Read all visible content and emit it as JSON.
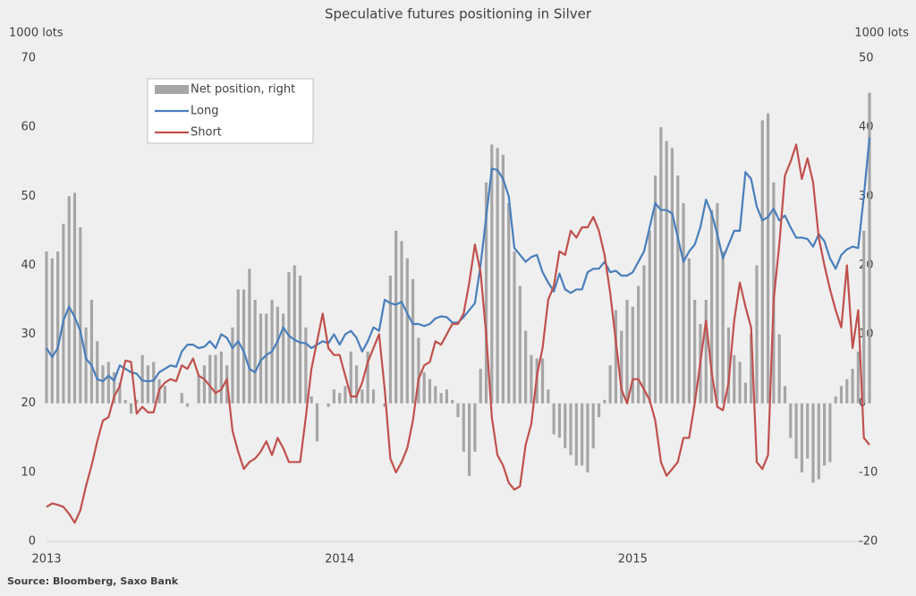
{
  "chart_data": {
    "type": "combo",
    "title": "Speculative futures positioning in Silver",
    "y_label": "1000 lots",
    "y2_label": "1000 lots",
    "source": "Source: Bloomberg, Saxo Bank",
    "legend": "upper left",
    "categories": [
      "2013",
      null,
      null,
      null,
      null,
      null,
      null,
      null,
      null,
      null,
      null,
      null,
      null,
      null,
      null,
      null,
      null,
      null,
      null,
      null,
      null,
      null,
      null,
      null,
      null,
      null,
      null,
      null,
      null,
      null,
      null,
      null,
      null,
      null,
      null,
      null,
      null,
      null,
      null,
      null,
      null,
      null,
      null,
      null,
      null,
      null,
      null,
      null,
      null,
      null,
      null,
      null,
      "2014",
      null,
      null,
      null,
      null,
      null,
      null,
      null,
      null,
      null,
      null,
      null,
      null,
      null,
      null,
      null,
      null,
      null,
      null,
      null,
      null,
      null,
      null,
      null,
      null,
      null,
      null,
      null,
      null,
      null,
      null,
      null,
      null,
      null,
      null,
      null,
      null,
      null,
      null,
      null,
      null,
      null,
      null,
      null,
      null,
      null,
      null,
      null,
      null,
      null,
      null,
      null,
      "2015",
      null,
      null,
      null,
      null,
      null,
      null,
      null,
      null,
      null,
      null,
      null,
      null,
      null,
      null,
      null,
      null,
      null,
      null,
      null,
      null,
      null,
      null,
      null,
      null,
      null,
      null,
      null,
      null,
      null,
      null,
      null,
      null,
      null,
      null,
      null,
      null,
      null,
      null,
      null,
      null,
      null,
      null
    ],
    "ylim": [
      0,
      70
    ],
    "yticks": [
      0,
      10,
      20,
      30,
      40,
      50,
      60,
      70
    ],
    "y2lim": [
      -20,
      50
    ],
    "y2ticks": [
      -20,
      -10,
      0,
      10,
      20,
      30,
      40,
      50
    ],
    "series": [
      {
        "name": "Net position, right",
        "type": "bar",
        "axis": "y2",
        "color": "#a6a6a6",
        "values": [
          22,
          21,
          22,
          26,
          30,
          30.5,
          25.5,
          11,
          15,
          9,
          5.5,
          6,
          4.5,
          3,
          0.5,
          -1.5,
          0.5,
          7,
          5.5,
          6,
          3.5,
          2.5,
          0,
          0,
          1.5,
          -0.5,
          0,
          4,
          5.5,
          7,
          7,
          7.5,
          5.5,
          11,
          16.5,
          16.5,
          19.5,
          15,
          13,
          13,
          15,
          14,
          13,
          19,
          20,
          18.5,
          11,
          1,
          -5.5,
          0,
          -0.5,
          2,
          1.5,
          2.5,
          7.5,
          5.5,
          2,
          7.5,
          2,
          0,
          -0.5,
          18.5,
          25,
          23.5,
          21,
          18,
          9.5,
          4.5,
          3.5,
          2.5,
          1.5,
          2,
          0.5,
          -2,
          -7,
          -10.5,
          -7,
          5,
          32,
          37.5,
          37,
          36,
          29,
          22,
          17,
          10.5,
          7,
          6.5,
          6.5,
          2,
          -4.5,
          -5,
          -6.5,
          -7.5,
          -9,
          -9,
          -10,
          -6.5,
          -2,
          0.5,
          5.5,
          13.5,
          10.5,
          15,
          14,
          17,
          20,
          25,
          33,
          40,
          38,
          37,
          33,
          29,
          21,
          15,
          11.5,
          15,
          28,
          29,
          22,
          11,
          7,
          6,
          3,
          10,
          20,
          41,
          42,
          32,
          10,
          2.5,
          -5,
          -8,
          -10,
          -8,
          -11.5,
          -11,
          -9,
          -8.5,
          1,
          2.5,
          3.5,
          5,
          7.5,
          25,
          45
        ]
      },
      {
        "name": "Long",
        "type": "line",
        "color": "#4a7ebb",
        "values": [
          28,
          26.7,
          28,
          32,
          34,
          32.5,
          30.5,
          26.5,
          25.5,
          23.5,
          23.2,
          24,
          23.3,
          25.5,
          25,
          24.5,
          24.3,
          23.3,
          23.2,
          23.3,
          24.5,
          25,
          25.5,
          25.3,
          27.5,
          28.5,
          28.5,
          28,
          28.2,
          29,
          28,
          30,
          29.5,
          28,
          29,
          27.5,
          25,
          24.5,
          26.2,
          27,
          27.5,
          29,
          31,
          29.8,
          29.2,
          28.8,
          28.7,
          28,
          28.5,
          29,
          28.7,
          30,
          28.5,
          30,
          30.5,
          29.5,
          27.5,
          29,
          31,
          30.5,
          35,
          34.5,
          34.3,
          34.7,
          33,
          31.5,
          31.5,
          31.2,
          31.5,
          32.3,
          32.6,
          32.5,
          31.7,
          31.7,
          32.5,
          33.5,
          34.5,
          40,
          47,
          54,
          53.8,
          52.5,
          50,
          42.5,
          41.5,
          40.5,
          41.2,
          41.5,
          39,
          37.5,
          36.2,
          38.8,
          36.5,
          36,
          36.5,
          36.5,
          39,
          39.5,
          39.5,
          40.5,
          39,
          39.2,
          38.5,
          38.5,
          39,
          40.5,
          42,
          45.5,
          49,
          48,
          48,
          47.5,
          44,
          40.5,
          42,
          43,
          45.5,
          49.5,
          47.5,
          44.5,
          41,
          43,
          45,
          45,
          53.5,
          52.5,
          48.5,
          46.5,
          47,
          48.2,
          46.5,
          47.2,
          45.5,
          44,
          44,
          43.8,
          42.7,
          44.5,
          43.5,
          41,
          39.5,
          41.5,
          42.3,
          42.7,
          42.5,
          50,
          58.5
        ]
      },
      {
        "name": "Short",
        "type": "line",
        "color": "#c0504d",
        "values": [
          5,
          5.5,
          5.3,
          5,
          4,
          2.7,
          4.5,
          8,
          11,
          14.5,
          17.5,
          18,
          21,
          22.5,
          26.2,
          26,
          18.5,
          19.5,
          18.7,
          18.7,
          22,
          23,
          23.5,
          23.2,
          25.5,
          25,
          26.5,
          24,
          23.5,
          22.5,
          21.5,
          22,
          23.5,
          16,
          13,
          10.5,
          11.5,
          12,
          13,
          14.5,
          12.5,
          15,
          13.5,
          11.5,
          11.5,
          11.5,
          18,
          25,
          29,
          33,
          28,
          27,
          27,
          24,
          21,
          21,
          23,
          26,
          28,
          30,
          22,
          12,
          10,
          11.5,
          13.5,
          17.5,
          23.5,
          25.5,
          26,
          29,
          28.5,
          30,
          31.5,
          31.5,
          33,
          37.5,
          43,
          39,
          30,
          18,
          12.5,
          11,
          8.5,
          7.5,
          8,
          14,
          17,
          24,
          28,
          35,
          37,
          42,
          41.5,
          45,
          44,
          45.5,
          45.5,
          47,
          45,
          41.5,
          36,
          29,
          22,
          20,
          23.5,
          23.5,
          22,
          20.5,
          17.5,
          11.5,
          9.5,
          10.5,
          11.5,
          15,
          15,
          20,
          26,
          32,
          24.5,
          19.5,
          19,
          23,
          32,
          37.5,
          34,
          31,
          11.5,
          10.5,
          12.5,
          35,
          43,
          53,
          55,
          57.5,
          52.5,
          55.5,
          52,
          44,
          40,
          36.5,
          33.5,
          31,
          40,
          28,
          33.5,
          15,
          14
        ]
      }
    ]
  }
}
